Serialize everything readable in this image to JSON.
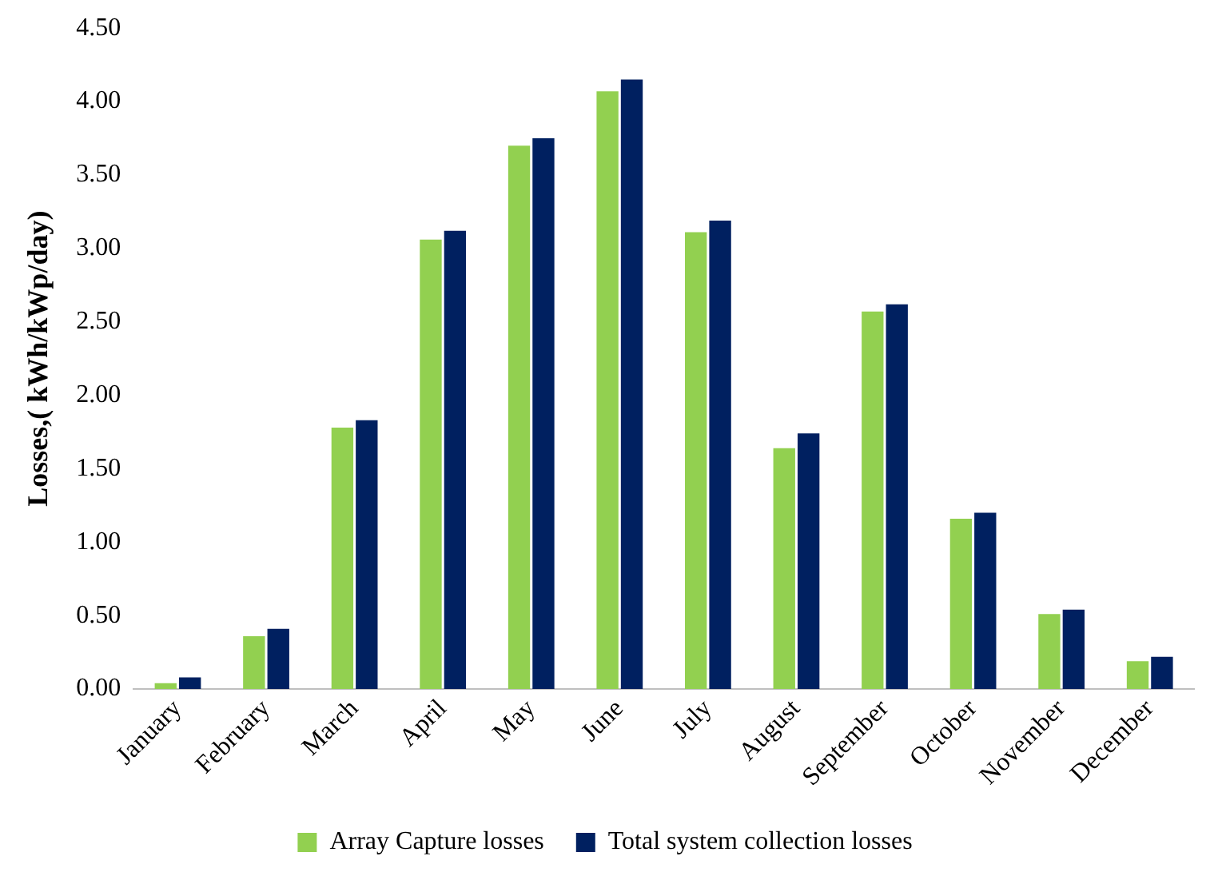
{
  "chart_data": {
    "type": "bar",
    "ylabel": "Losses,( kWh/kWp/day)",
    "categories": [
      "January",
      "February",
      "March",
      "April",
      "May",
      "June",
      "July",
      "August",
      "September",
      "October",
      "November",
      "December"
    ],
    "series": [
      {
        "name": "Array Capture losses",
        "color": "#92d050",
        "values": [
          0.04,
          0.36,
          1.78,
          3.06,
          3.7,
          4.07,
          3.11,
          1.64,
          2.57,
          1.16,
          0.51,
          0.19
        ]
      },
      {
        "name": "Total system collection losses",
        "color": "#002060",
        "values": [
          0.08,
          0.41,
          1.83,
          3.12,
          3.75,
          4.15,
          3.19,
          1.74,
          2.62,
          1.2,
          0.54,
          0.22
        ]
      }
    ],
    "ylim": [
      0,
      4.5
    ],
    "yticks": [
      {
        "value": 0,
        "label": "0.00"
      },
      {
        "value": 0.5,
        "label": "0.50"
      },
      {
        "value": 1,
        "label": "1.00"
      },
      {
        "value": 1.5,
        "label": "1.50"
      },
      {
        "value": 2,
        "label": "2.00"
      },
      {
        "value": 2.5,
        "label": "2.50"
      },
      {
        "value": 3,
        "label": "3.00"
      },
      {
        "value": 3.5,
        "label": "3.50"
      },
      {
        "value": 4,
        "label": "4.00"
      },
      {
        "value": 4.5,
        "label": "4.50"
      }
    ],
    "grid": false,
    "legend": "bottom"
  }
}
